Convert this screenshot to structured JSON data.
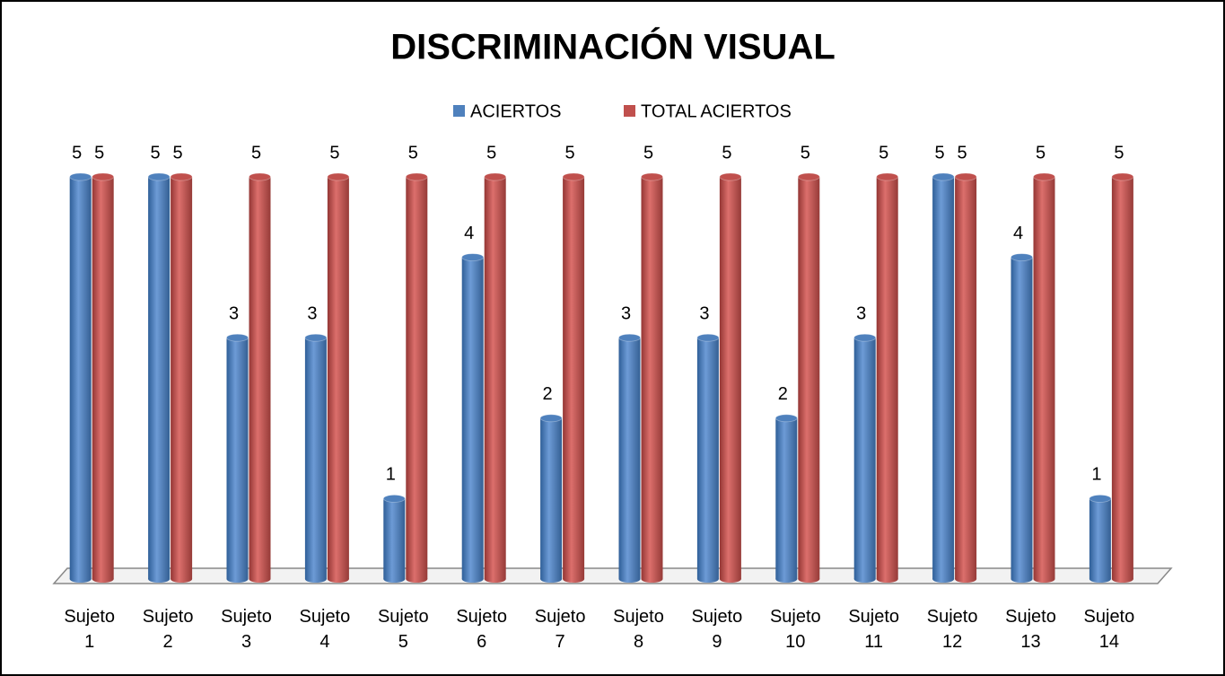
{
  "chart_data": {
    "type": "bar",
    "title": "DISCRIMINACIÓN VISUAL",
    "categories": [
      "Sujeto 1",
      "Sujeto 2",
      "Sujeto 3",
      "Sujeto 4",
      "Sujeto 5",
      "Sujeto 6",
      "Sujeto 7",
      "Sujeto 8",
      "Sujeto 9",
      "Sujeto 10",
      "Sujeto 11",
      "Sujeto 12",
      "Sujeto 13",
      "Sujeto 14"
    ],
    "series": [
      {
        "name": "ACIERTOS",
        "color": "#4f81bd",
        "values": [
          5,
          5,
          3,
          3,
          1,
          4,
          2,
          3,
          3,
          2,
          3,
          5,
          4,
          1
        ]
      },
      {
        "name": "TOTAL ACIERTOS",
        "color": "#c0504d",
        "values": [
          5,
          5,
          5,
          5,
          5,
          5,
          5,
          5,
          5,
          5,
          5,
          5,
          5,
          5
        ]
      }
    ],
    "ylim": [
      0,
      5
    ]
  }
}
